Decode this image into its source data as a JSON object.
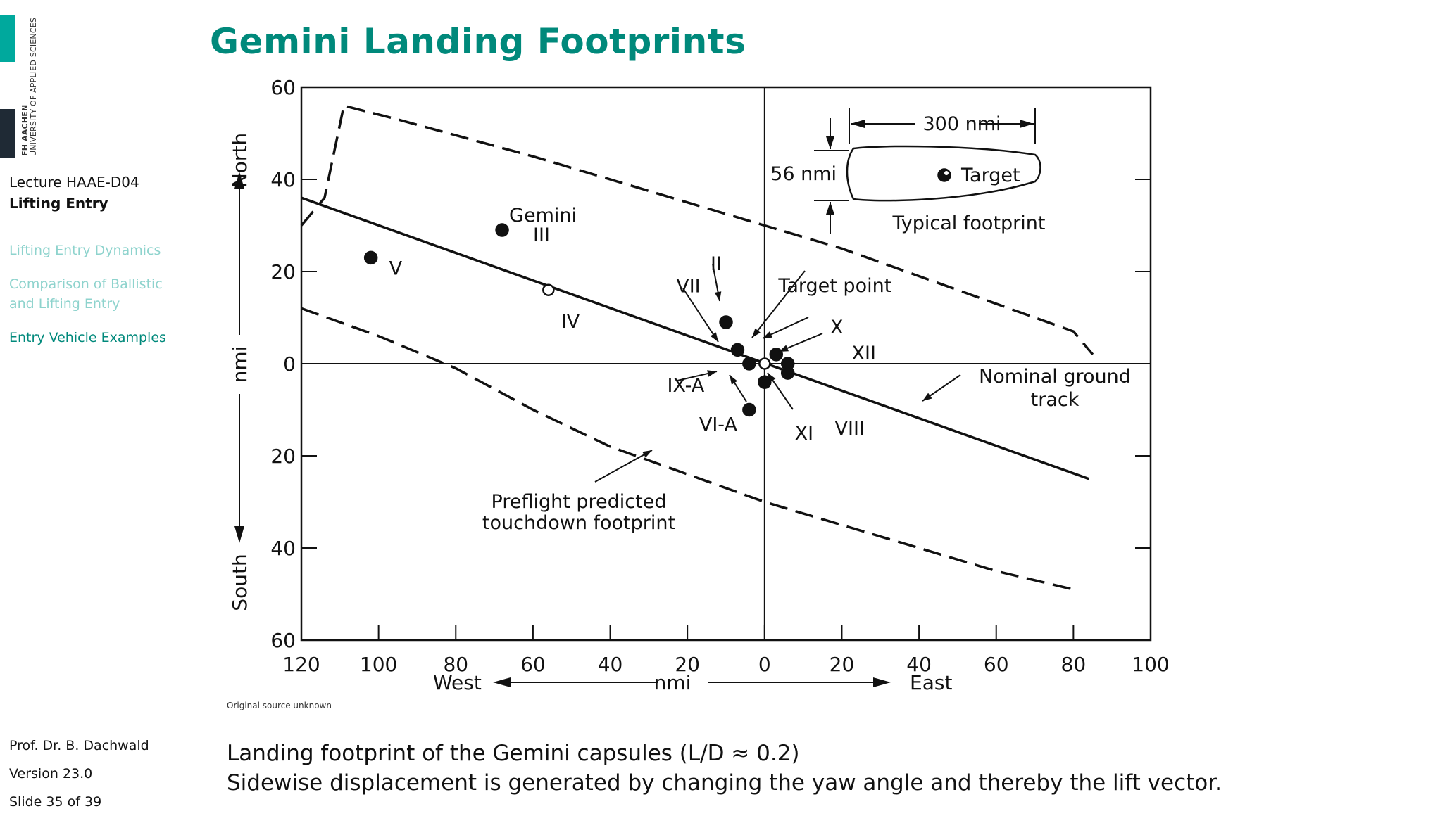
{
  "sidebar": {
    "logo_line1": "FH AACHEN",
    "logo_line2": "UNIVERSITY OF APPLIED SCIENCES",
    "lecture_code": "Lecture HAAE-D04",
    "lecture_title": "Lifting Entry",
    "nav": [
      {
        "label": "Lifting Entry Dynamics",
        "active": false
      },
      {
        "label": "Comparison of Ballistic and Lifting Entry",
        "active": false
      },
      {
        "label": "Entry Vehicle Examples",
        "active": true
      }
    ],
    "author": "Prof. Dr. B. Dachwald",
    "version": "Version 23.0",
    "slide": "Slide 35 of 39"
  },
  "slide_title": "Gemini Landing Footprints",
  "source_note": "Original source unknown",
  "caption_line1": "Landing footprint of the Gemini capsules (L/D ≈ 0.2)",
  "caption_line2": "Sidewise displacement is generated by changing the yaw angle and thereby the lift vector.",
  "chart_data": {
    "type": "scatter",
    "x_tick_labels": [
      "120",
      "100",
      "80",
      "60",
      "40",
      "20",
      "0",
      "20",
      "40",
      "60",
      "80",
      "100"
    ],
    "y_tick_labels": [
      "60",
      "40",
      "20",
      "0",
      "20",
      "40",
      "60"
    ],
    "xlabel_left": "West",
    "xlabel_center": "nmi",
    "xlabel_right": "East",
    "ylabel_top": "North",
    "ylabel_center": "nmi",
    "ylabel_bottom": "South",
    "xlim": [
      -120,
      100
    ],
    "ylim": [
      -60,
      60
    ],
    "grid": false,
    "points": [
      {
        "label": "V",
        "x": -102,
        "y": 23,
        "filled": true
      },
      {
        "label": "Gemini III",
        "x": -68,
        "y": 29,
        "filled": true
      },
      {
        "label": "IV",
        "x": -56,
        "y": 16,
        "filled": false
      },
      {
        "label": "II",
        "x": -10,
        "y": 9,
        "filled": true
      },
      {
        "label": "VII",
        "x": -7,
        "y": 3,
        "filled": true
      },
      {
        "label": "IX-A",
        "x": -4,
        "y": 0,
        "filled": true
      },
      {
        "label": "VI-A",
        "x": -4,
        "y": -10,
        "filled": true
      },
      {
        "label": "Target point",
        "x": 0,
        "y": 0,
        "filled": false
      },
      {
        "label": "X",
        "x": 3,
        "y": 2,
        "filled": true
      },
      {
        "label": "XII",
        "x": 6,
        "y": 0,
        "filled": true
      },
      {
        "label": "XI",
        "x": 0,
        "y": -4,
        "filled": true
      },
      {
        "label": "VIII",
        "x": 6,
        "y": -2,
        "filled": true
      }
    ],
    "nominal_track": {
      "label": "Nominal ground track",
      "points": [
        [
          -120,
          36
        ],
        [
          84,
          -25
        ]
      ]
    },
    "footprint_upper": [
      [
        -120,
        30
      ],
      [
        -114,
        36
      ],
      [
        -109,
        56
      ],
      [
        -95,
        53
      ],
      [
        -60,
        45
      ],
      [
        -20,
        35
      ],
      [
        0,
        30
      ],
      [
        20,
        25
      ],
      [
        50,
        16
      ],
      [
        80,
        7
      ],
      [
        85,
        2
      ]
    ],
    "footprint_lower": [
      [
        -120,
        12
      ],
      [
        -100,
        6
      ],
      [
        -80,
        -1
      ],
      [
        -60,
        -10
      ],
      [
        -40,
        -18
      ],
      [
        -20,
        -24
      ],
      [
        0,
        -30
      ],
      [
        20,
        -35
      ],
      [
        40,
        -40
      ],
      [
        60,
        -45
      ],
      [
        80,
        -49
      ]
    ],
    "footprint_label": "Preflight predicted touchdown footprint",
    "inset": {
      "label": "Typical footprint",
      "target_label": "Target",
      "length_label": "300 nmi",
      "width_label": "56 nmi"
    }
  }
}
